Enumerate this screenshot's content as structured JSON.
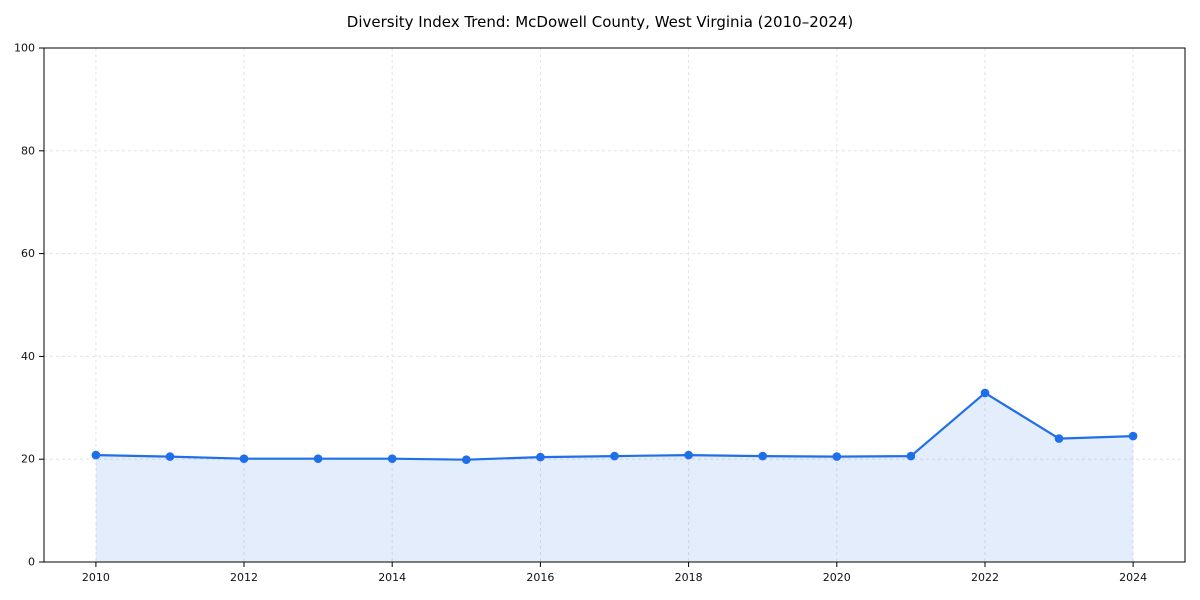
{
  "chart_data": {
    "type": "line",
    "title": "Diversity Index Trend: McDowell County, West Virginia (2010–2024)",
    "series_name": "Diversity Index",
    "x": [
      2010,
      2011,
      2012,
      2013,
      2014,
      2015,
      2016,
      2017,
      2018,
      2019,
      2020,
      2021,
      2022,
      2023,
      2024
    ],
    "values": [
      20.8,
      20.5,
      20.1,
      20.1,
      20.1,
      19.9,
      20.4,
      20.6,
      20.8,
      20.6,
      20.5,
      20.6,
      32.9,
      24.0,
      24.5
    ],
    "xlabel": "",
    "ylabel": "",
    "xlim": [
      2009.3,
      2024.7
    ],
    "ylim": [
      0,
      100
    ],
    "xticks": [
      2010,
      2012,
      2014,
      2016,
      2018,
      2020,
      2022,
      2024
    ],
    "yticks": [
      0,
      20,
      40,
      60,
      80,
      100
    ],
    "grid": true,
    "grid_style": "dashed",
    "grid_color": "#e3e3e3",
    "legend": "none",
    "line_color": "#1f6fe8",
    "fill_color": "#1f6fe8",
    "fill_opacity": 0.12,
    "marker": "circle",
    "axis_color": "#000000",
    "tick_label_color": "#111111"
  }
}
